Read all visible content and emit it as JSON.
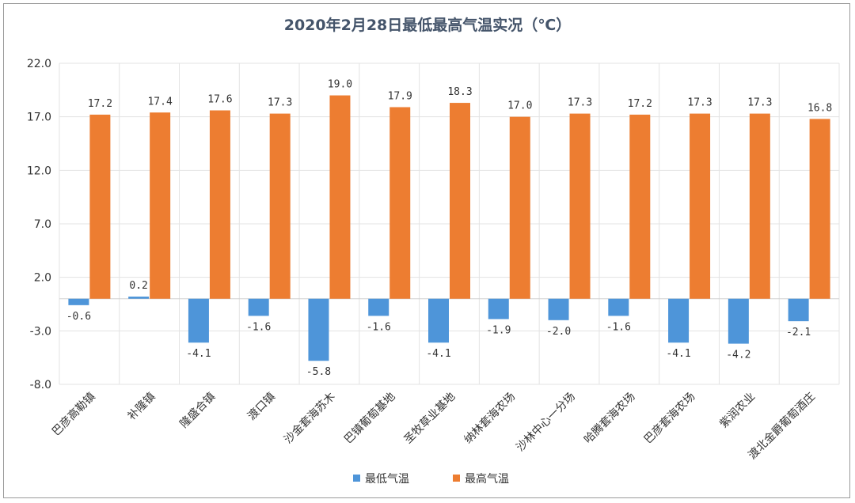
{
  "chart_data": {
    "type": "bar",
    "title": "2020年2月28日最低最高气温实况（℃）",
    "categories": [
      "巴彦高勒镇",
      "补隆镇",
      "隆盛合镇",
      "渡口镇",
      "沙金套海苏木",
      "巴镇葡萄基地",
      "圣牧草业基地",
      "纳林套海农场",
      "沙林中心一分场",
      "哈腾套海农场",
      "巴彦套海农场",
      "紫润农业",
      "渡北金爵葡萄酒庄"
    ],
    "series": [
      {
        "name": "最低气温",
        "color": "#4e95d9",
        "values": [
          -0.6,
          0.2,
          -4.1,
          -1.6,
          -5.8,
          -1.6,
          -4.1,
          -1.9,
          -2.0,
          -1.6,
          -4.1,
          -4.2,
          -2.1
        ]
      },
      {
        "name": "最高气温",
        "color": "#ed7d31",
        "values": [
          17.2,
          17.4,
          17.6,
          17.3,
          19.0,
          17.9,
          18.3,
          17.0,
          17.3,
          17.2,
          17.3,
          17.3,
          16.8
        ]
      }
    ],
    "ylim": [
      -8.0,
      22.0
    ],
    "yticks": [
      "22.0",
      "17.0",
      "12.0",
      "7.0",
      "2.0",
      "-3.0",
      "-8.0"
    ],
    "ytick_values": [
      22,
      17,
      12,
      7,
      2,
      -3,
      -8
    ],
    "grid": true,
    "legend_position": "bottom"
  }
}
